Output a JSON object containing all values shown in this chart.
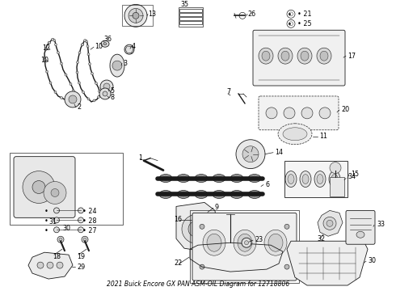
{
  "title": "2021 Buick Encore GX PAN ASM-OIL Diagram for 12718806",
  "bg_color": "#ffffff",
  "lc": "#1a1a1a",
  "tc": "#000000",
  "figsize": [
    4.9,
    3.6
  ],
  "dpi": 100,
  "label_fontsize": 5.8,
  "title_fontsize": 5.5
}
